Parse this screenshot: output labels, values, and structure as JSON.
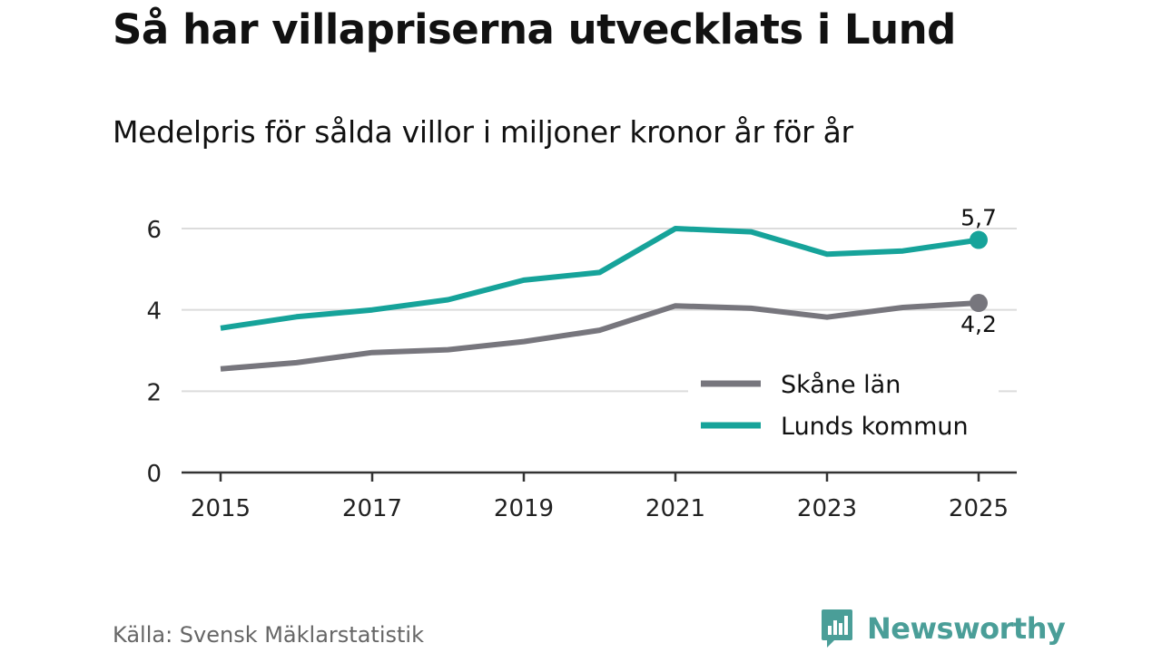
{
  "header": {
    "title": "Så har villapriserna utvecklats i Lund",
    "subtitle": "Medelpris för sålda villor i miljoner kronor år för år"
  },
  "footer": {
    "source": "Källa: Svensk Mäklarstatistik",
    "brand": "Newsworthy"
  },
  "colors": {
    "skane": "#77767d",
    "lund": "#16a39a",
    "grid": "#dcdcdc",
    "axis": "#333333",
    "brand": "#4a9e98"
  },
  "chart_data": {
    "type": "line",
    "title": "Så har villapriserna utvecklats i Lund",
    "subtitle": "Medelpris för sålda villor i miljoner kronor år för år",
    "xlabel": "",
    "ylabel": "",
    "x": [
      2015,
      2016,
      2017,
      2018,
      2019,
      2020,
      2021,
      2022,
      2023,
      2024,
      2025
    ],
    "xticks": [
      "2015",
      "2017",
      "2019",
      "2021",
      "2023",
      "2025"
    ],
    "yticks": [
      "0",
      "2",
      "4",
      "6"
    ],
    "xlim": [
      2015,
      2025
    ],
    "ylim": [
      0,
      6
    ],
    "grid": true,
    "legend_position": "bottom-right",
    "series": [
      {
        "name": "Skåne län",
        "color": "#77767d",
        "values": [
          2.55,
          2.7,
          2.95,
          3.02,
          3.22,
          3.5,
          4.1,
          4.04,
          3.82,
          4.06,
          4.17
        ],
        "end_label": "4,2",
        "end_label_position": "below"
      },
      {
        "name": "Lunds kommun",
        "color": "#16a39a",
        "values": [
          3.55,
          3.83,
          4.0,
          4.25,
          4.73,
          4.92,
          6.0,
          5.92,
          5.37,
          5.45,
          5.72
        ],
        "end_label": "5,7",
        "end_label_position": "above"
      }
    ]
  }
}
